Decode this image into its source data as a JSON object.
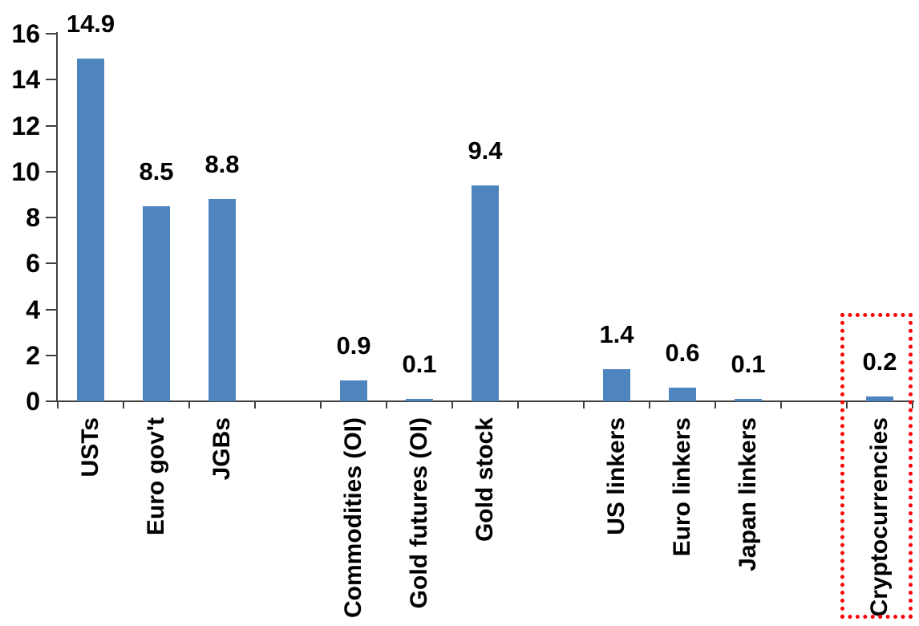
{
  "chart_data": {
    "type": "bar",
    "title": "",
    "xlabel": "",
    "ylabel": "",
    "categories": [
      "USTs",
      "Euro gov't",
      "JGBs",
      "Commodities (OI)",
      "Gold futures (OI)",
      "Gold stock",
      "US linkers",
      "Euro linkers",
      "Japan linkers",
      "Cryptocurrencies"
    ],
    "values": [
      14.9,
      8.5,
      8.8,
      0.9,
      0.1,
      9.4,
      1.4,
      0.6,
      0.1,
      0.2
    ],
    "value_labels": [
      "14.9",
      "8.5",
      "8.8",
      "0.9",
      "0.1",
      "9.4",
      "1.4",
      "0.6",
      "0.1",
      "0.2"
    ],
    "slots": [
      1,
      2,
      3,
      5,
      6,
      7,
      9,
      10,
      11,
      13
    ],
    "total_slots": 13,
    "ylim": [
      0,
      16
    ],
    "yticks": [
      0,
      2,
      4,
      6,
      8,
      10,
      12,
      14,
      16
    ],
    "grid": false,
    "legend": "none",
    "data_labels": "outside-end",
    "category_label_rotation": -90,
    "bar_color": "#4e85be",
    "axis_color": "#404040",
    "text_color": "#000000",
    "highlight": {
      "category": "Cryptocurrencies",
      "shape": "dotted-rectangle",
      "border_color": "#ff0000"
    }
  }
}
